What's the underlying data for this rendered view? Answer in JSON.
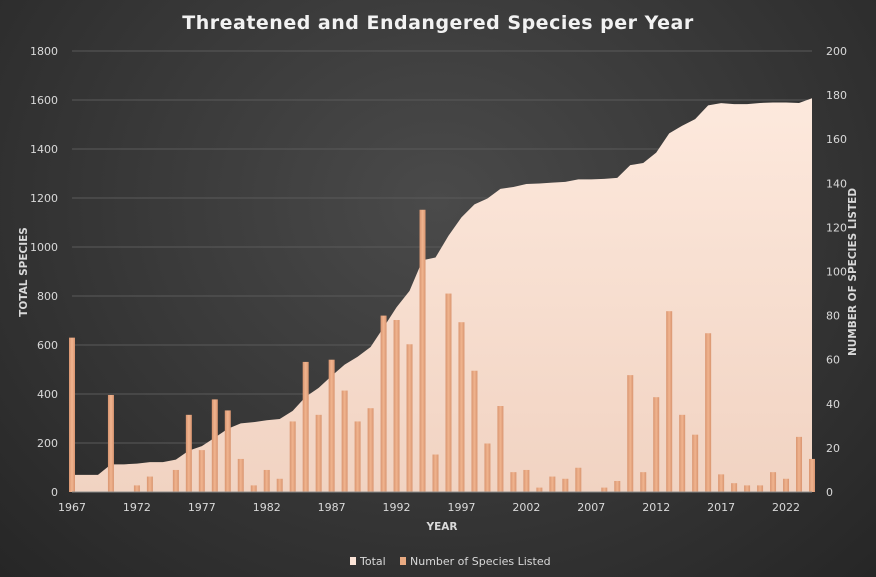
{
  "chart_data": {
    "type": "bar+area",
    "title": "Threatened and Endangered Species per Year",
    "xlabel": "YEAR",
    "ylabel_left": "TOTAL SPECIES",
    "ylabel_right": "NUMBER OF SPECIES LISTED",
    "ylim_left": [
      0,
      1800
    ],
    "ylim_right": [
      0,
      200
    ],
    "x_tick_labels": [
      "1967",
      "1972",
      "1977",
      "1982",
      "1987",
      "1992",
      "1997",
      "2002",
      "2007",
      "2012",
      "2017",
      "2022"
    ],
    "left_tick_labels": [
      "0",
      "200",
      "400",
      "600",
      "800",
      "1000",
      "1200",
      "1400",
      "1600",
      "1800"
    ],
    "right_tick_labels": [
      "0",
      "20",
      "40",
      "60",
      "80",
      "100",
      "120",
      "140",
      "160",
      "180",
      "200"
    ],
    "years": [
      1967,
      1968,
      1969,
      1970,
      1971,
      1972,
      1973,
      1974,
      1975,
      1976,
      1977,
      1978,
      1979,
      1980,
      1981,
      1982,
      1983,
      1984,
      1985,
      1986,
      1987,
      1988,
      1989,
      1990,
      1991,
      1992,
      1993,
      1994,
      1995,
      1996,
      1997,
      1998,
      1999,
      2000,
      2001,
      2002,
      2003,
      2004,
      2005,
      2006,
      2007,
      2008,
      2009,
      2010,
      2011,
      2012,
      2013,
      2014,
      2015,
      2016,
      2017,
      2018,
      2019,
      2020,
      2021,
      2022,
      2023,
      2024
    ],
    "series": [
      {
        "name": "Total",
        "kind": "area",
        "axis": "left",
        "color": "#fbe3d6",
        "values": [
          70,
          70,
          70,
          113,
          113,
          116,
          122,
          122,
          132,
          169,
          187,
          222,
          258,
          280,
          285,
          293,
          298,
          331,
          389,
          425,
          474,
          520,
          552,
          592,
          672,
          754,
          821,
          946,
          957,
          1046,
          1121,
          1174,
          1198,
          1237,
          1245,
          1257,
          1259,
          1263,
          1266,
          1276,
          1276,
          1278,
          1282,
          1334,
          1343,
          1385,
          1464,
          1495,
          1522,
          1578,
          1587,
          1583,
          1583,
          1588,
          1590,
          1590,
          1588,
          1607
        ]
      },
      {
        "name": "Number of Species Listed",
        "kind": "bar",
        "axis": "right",
        "color": "#e9aa82",
        "values": [
          70,
          0,
          0,
          44,
          0,
          3,
          7,
          0,
          10,
          35,
          19,
          42,
          37,
          15,
          3,
          10,
          6,
          32,
          59,
          35,
          60,
          46,
          32,
          38,
          80,
          78,
          67,
          128,
          17,
          90,
          77,
          55,
          22,
          39,
          9,
          10,
          2,
          7,
          6,
          11,
          0,
          2,
          5,
          53,
          9,
          43,
          82,
          35,
          26,
          72,
          8,
          4,
          3,
          3,
          9,
          6,
          25,
          15
        ]
      }
    ],
    "legend": {
      "position": "bottom",
      "items": [
        "Total",
        "Number of Species Listed"
      ]
    },
    "grid": true
  }
}
